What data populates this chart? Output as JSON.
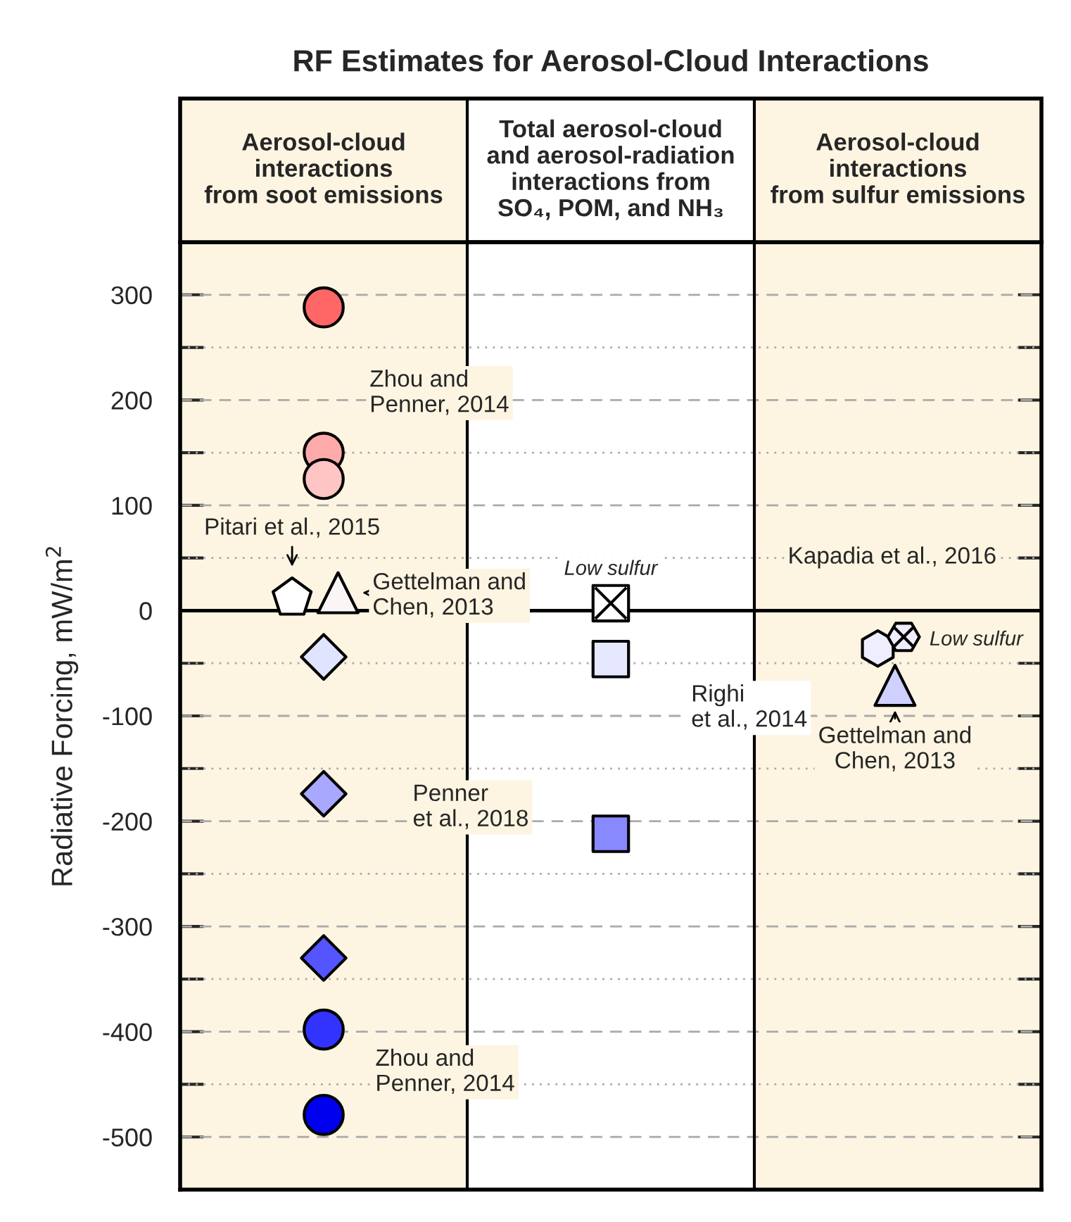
{
  "chart_data": {
    "type": "scatter",
    "title": "RF Estimates for Aerosol-Cloud Interactions",
    "ylabel": "Radiative Forcing, mW/m$^{2}$",
    "categories": [
      "Aerosol-cloud\ninteractions\nfrom soot emissions",
      "Total aerosol-cloud\nand aerosol-radiation\ninteractions from\nSO₄, POM, and NH₃",
      "Aerosol-cloud\ninteractions\nfrom sulfur emissions"
    ],
    "ylim": [
      -550,
      350
    ],
    "yticks": [
      -500,
      {
        "value": -450,
        "label": null
      },
      -400,
      {
        "value": -350,
        "label": null
      },
      -300,
      {
        "value": -250,
        "label": null
      },
      -200,
      {
        "value": -150,
        "label": null
      },
      -100,
      {
        "value": -50,
        "label": null
      },
      0,
      {
        "value": 50,
        "label": null
      },
      100,
      {
        "value": 150,
        "label": null
      },
      200,
      {
        "value": 250,
        "label": null
      },
      300
    ],
    "grid": "y",
    "ref_lines": [
      {
        "axis": "y",
        "value": 0,
        "color": "#000000",
        "line_style": "solid"
      }
    ],
    "bands": [
      {
        "axis": "x",
        "from": "Aerosol-cloud\ninteractions\nfrom soot emissions",
        "to": "Aerosol-cloud\ninteractions\nfrom soot emissions",
        "color": "#fdf5e2"
      },
      {
        "axis": "x",
        "from": "Aerosol-cloud\ninteractions\nfrom sulfur emissions",
        "to": "Aerosol-cloud\ninteractions\nfrom sulfur emissions",
        "color": "#fdf5e2"
      }
    ],
    "series": [
      {
        "marker": "circle",
        "x": [
          "Aerosol-cloud\ninteractions\nfrom soot emissions",
          "Aerosol-cloud\ninteractions\nfrom soot emissions",
          "Aerosol-cloud\ninteractions\nfrom soot emissions",
          "Aerosol-cloud\ninteractions\nfrom soot emissions",
          "Aerosol-cloud\ninteractions\nfrom soot emissions"
        ],
        "values": [
          288,
          150,
          125,
          -398,
          -479
        ],
        "colors": [
          "#ff6666",
          "#ffaaaa",
          "#ffc4c4",
          "#3333ff",
          "#0000ee"
        ]
      },
      {
        "x": [
          "Aerosol-cloud\ninteractions\nfrom soot emissions"
        ],
        "values": [
          12
        ],
        "colors": [
          "#ffffff"
        ]
      },
      {
        "marker": "triangle",
        "x": [
          "Aerosol-cloud\ninteractions\nfrom soot emissions"
        ],
        "values": [
          17
        ],
        "colors": [
          "#fbf6f6"
        ]
      },
      {
        "marker": "diamond",
        "x": [
          "Aerosol-cloud\ninteractions\nfrom soot emissions",
          "Aerosol-cloud\ninteractions\nfrom soot emissions",
          "Aerosol-cloud\ninteractions\nfrom soot emissions"
        ],
        "values": [
          -44,
          -174,
          -330
        ],
        "colors": [
          "#e0e4ff",
          "#a8a8ff",
          "#5555ff"
        ]
      },
      {
        "x": [
          "Total aerosol-cloud\nand aerosol-radiation\ninteractions from\nSO₄, POM, and NH₃"
        ],
        "values": [
          7
        ],
        "colors": [
          "#ffffff"
        ]
      },
      {
        "marker": "square",
        "x": [
          "Total aerosol-cloud\nand aerosol-radiation\ninteractions from\nSO₄, POM, and NH₃",
          "Total aerosol-cloud\nand aerosol-radiation\ninteractions from\nSO₄, POM, and NH₃"
        ],
        "values": [
          -46,
          -212
        ],
        "colors": [
          "#e6e8ff",
          "#8888ff"
        ]
      },
      {
        "x": [
          "Aerosol-cloud\ninteractions\nfrom sulfur emissions"
        ],
        "values": [
          -36
        ],
        "colors": [
          "#eeeeff"
        ]
      },
      {
        "x": [
          "Aerosol-cloud\ninteractions\nfrom sulfur emissions"
        ],
        "values": [
          -25
        ],
        "colors": [
          "#eeeeff"
        ]
      },
      {
        "marker": "triangle",
        "x": [
          "Aerosol-cloud\ninteractions\nfrom sulfur emissions"
        ],
        "values": [
          -71
        ],
        "colors": [
          "#d0d0ff"
        ]
      }
    ],
    "annotations": [
      "Zhou and\nPenner, 2014",
      "Pitari et al., 2015",
      "Gettelman and\nChen, 2013",
      "Penner\net al., 2018",
      "Zhou and\nPenner, 2014",
      "Low sulfur",
      "Righi\net al., 2014",
      "Kapadia et al., 2016",
      "Low sulfur",
      "Gettelman and\nChen, 2013"
    ]
  }
}
